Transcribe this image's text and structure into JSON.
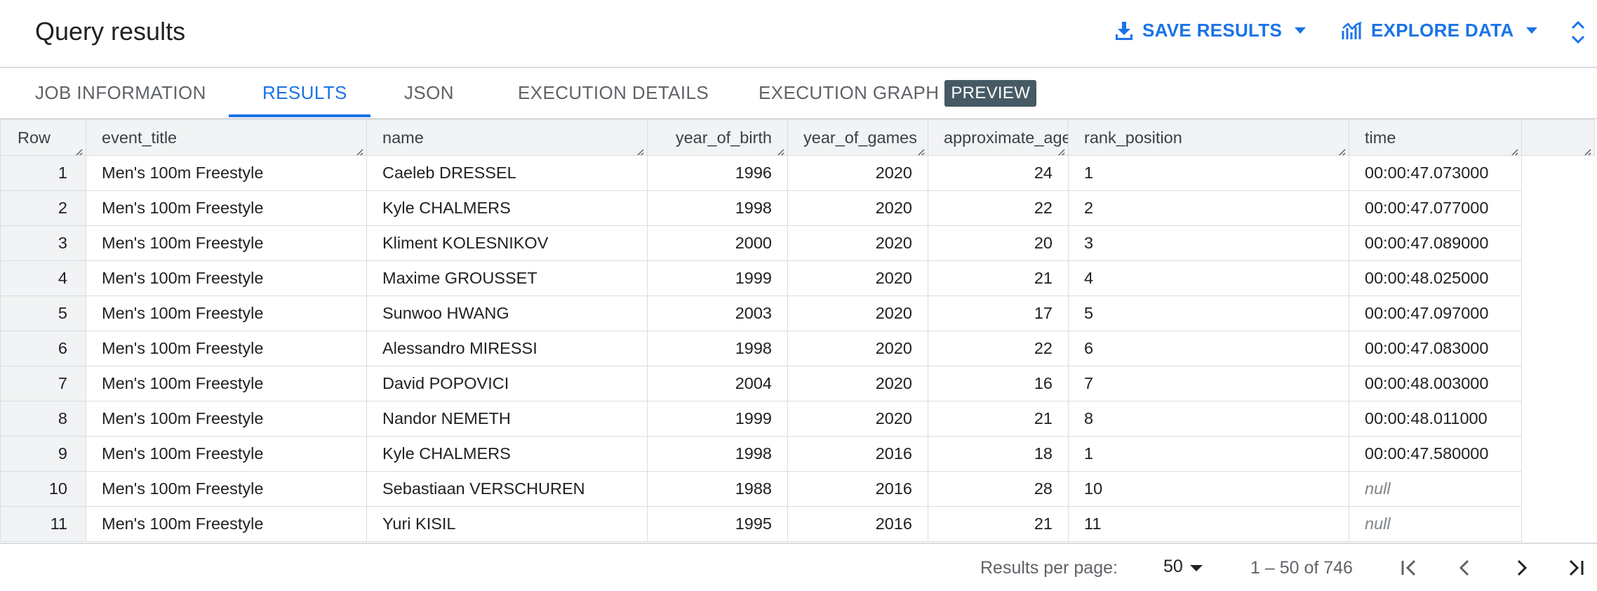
{
  "header": {
    "title": "Query results",
    "save_results_label": "SAVE RESULTS",
    "explore_data_label": "EXPLORE DATA",
    "icons": [
      "download-icon",
      "chart-icon",
      "caret-down-icon",
      "unfold-icon"
    ],
    "accent_color": "#1a73e8"
  },
  "tabs": {
    "items": [
      {
        "label": "JOB INFORMATION"
      },
      {
        "label": "RESULTS",
        "active": true
      },
      {
        "label": "JSON"
      },
      {
        "label": "EXECUTION DETAILS"
      },
      {
        "label": "EXECUTION GRAPH",
        "badge": "PREVIEW"
      }
    ]
  },
  "table": {
    "columns": [
      "Row",
      "event_title",
      "name",
      "year_of_birth",
      "year_of_games",
      "approximate_age",
      "rank_position",
      "time"
    ],
    "rows": [
      [
        "1",
        "Men's 100m Freestyle",
        "Caeleb DRESSEL",
        "1996",
        "2020",
        "24",
        "1",
        "00:00:47.073000"
      ],
      [
        "2",
        "Men's 100m Freestyle",
        "Kyle CHALMERS",
        "1998",
        "2020",
        "22",
        "2",
        "00:00:47.077000"
      ],
      [
        "3",
        "Men's 100m Freestyle",
        "Kliment KOLESNIKOV",
        "2000",
        "2020",
        "20",
        "3",
        "00:00:47.089000"
      ],
      [
        "4",
        "Men's 100m Freestyle",
        "Maxime GROUSSET",
        "1999",
        "2020",
        "21",
        "4",
        "00:00:48.025000"
      ],
      [
        "5",
        "Men's 100m Freestyle",
        "Sunwoo HWANG",
        "2003",
        "2020",
        "17",
        "5",
        "00:00:47.097000"
      ],
      [
        "6",
        "Men's 100m Freestyle",
        "Alessandro MIRESSI",
        "1998",
        "2020",
        "22",
        "6",
        "00:00:47.083000"
      ],
      [
        "7",
        "Men's 100m Freestyle",
        "David POPOVICI",
        "2004",
        "2020",
        "16",
        "7",
        "00:00:48.003000"
      ],
      [
        "8",
        "Men's 100m Freestyle",
        "Nandor NEMETH",
        "1999",
        "2020",
        "21",
        "8",
        "00:00:48.011000"
      ],
      [
        "9",
        "Men's 100m Freestyle",
        "Kyle CHALMERS",
        "1998",
        "2016",
        "18",
        "1",
        "00:00:47.580000"
      ],
      [
        "10",
        "Men's 100m Freestyle",
        "Sebastiaan VERSCHUREN",
        "1988",
        "2016",
        "28",
        "10",
        "null"
      ],
      [
        "11",
        "Men's 100m Freestyle",
        "Yuri KISIL",
        "1995",
        "2016",
        "21",
        "11",
        "null"
      ]
    ]
  },
  "footer": {
    "results_per_page_label": "Results per page:",
    "results_per_page_value": "50",
    "range_label": "1 – 50 of 746",
    "icons": [
      "first-page-icon",
      "prev-page-icon",
      "next-page-icon",
      "last-page-icon"
    ]
  }
}
